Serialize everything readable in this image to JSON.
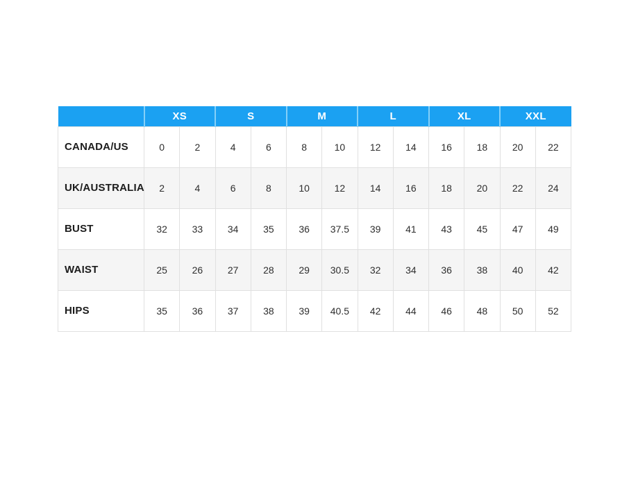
{
  "colors": {
    "header_background": "#1ba1f2",
    "header_text": "#ffffff",
    "header_divider": "#85d0f8",
    "row_stripe": "#f5f5f5",
    "row_default": "#ffffff",
    "cell_border": "#e0e0e0",
    "label_text": "#1c1c1c",
    "value_text": "#2e2e2e",
    "page_background": "#ffffff"
  },
  "chart_data": {
    "type": "table",
    "corner_label": "",
    "header_groups": [
      "XS",
      "S",
      "M",
      "L",
      "XL",
      "XXL"
    ],
    "sub_columns_per_group": 2,
    "rows": [
      {
        "label": "CANADA/US",
        "values": [
          "0",
          "2",
          "4",
          "6",
          "8",
          "10",
          "12",
          "14",
          "16",
          "18",
          "20",
          "22"
        ]
      },
      {
        "label": "UK/AUSTRALIA",
        "values": [
          "2",
          "4",
          "6",
          "8",
          "10",
          "12",
          "14",
          "16",
          "18",
          "20",
          "22",
          "24"
        ]
      },
      {
        "label": "BUST",
        "values": [
          "32",
          "33",
          "34",
          "35",
          "36",
          "37.5",
          "39",
          "41",
          "43",
          "45",
          "47",
          "49"
        ]
      },
      {
        "label": "WAIST",
        "values": [
          "25",
          "26",
          "27",
          "28",
          "29",
          "30.5",
          "32",
          "34",
          "36",
          "38",
          "40",
          "42"
        ]
      },
      {
        "label": "HIPS",
        "values": [
          "35",
          "36",
          "37",
          "38",
          "39",
          "40.5",
          "42",
          "44",
          "46",
          "48",
          "50",
          "52"
        ]
      }
    ]
  }
}
